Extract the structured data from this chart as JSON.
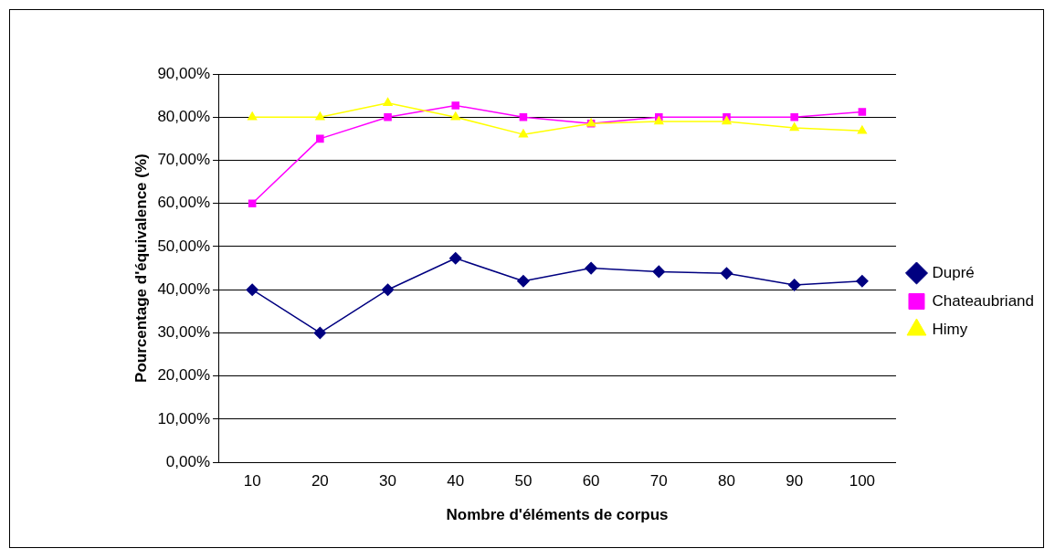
{
  "chart_data": {
    "type": "line",
    "xlabel": "Nombre d'éléments de corpus",
    "ylabel": "Pourcentage d'équivalence (%)",
    "categories": [
      "10",
      "20",
      "30",
      "40",
      "50",
      "60",
      "70",
      "80",
      "90",
      "100"
    ],
    "series": [
      {
        "name": "Dupré",
        "color": "#000080",
        "marker": "diamond",
        "values": [
          40,
          30,
          40,
          47.3,
          42,
          45,
          44.2,
          43.8,
          41.1,
          42
        ]
      },
      {
        "name": "Chateaubriand",
        "color": "#ff00ff",
        "marker": "square",
        "values": [
          60,
          75,
          80,
          82.7,
          80,
          78.5,
          80,
          80,
          80,
          81.2
        ]
      },
      {
        "name": "Himy",
        "color": "#ffff00",
        "marker": "triangle",
        "values": [
          80,
          80,
          83.3,
          80,
          76,
          78.5,
          79,
          79,
          77.5,
          76.8
        ]
      }
    ],
    "ylim": [
      0,
      90
    ],
    "yticks": [
      {
        "value": 0,
        "label": "0,00%"
      },
      {
        "value": 10,
        "label": "10,00%"
      },
      {
        "value": 20,
        "label": "20,00%"
      },
      {
        "value": 30,
        "label": "30,00%"
      },
      {
        "value": 40,
        "label": "40,00%"
      },
      {
        "value": 50,
        "label": "50,00%"
      },
      {
        "value": 60,
        "label": "60,00%"
      },
      {
        "value": 70,
        "label": "70,00%"
      },
      {
        "value": 80,
        "label": "80,00%"
      },
      {
        "value": 90,
        "label": "90,00%"
      }
    ],
    "grid": "y",
    "legend": "right"
  }
}
